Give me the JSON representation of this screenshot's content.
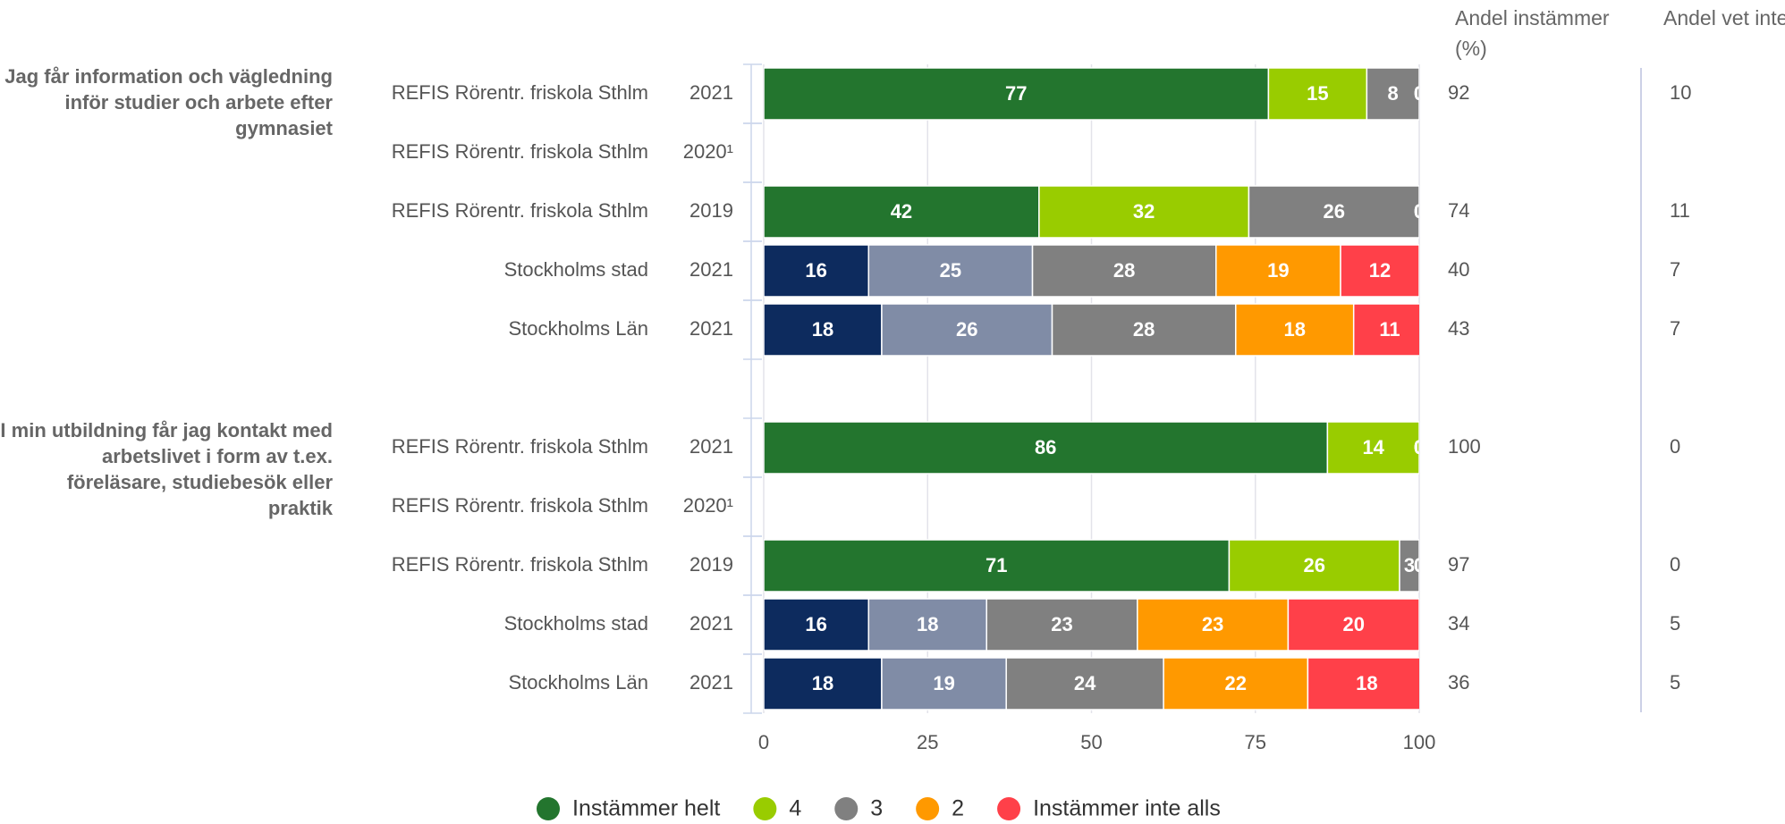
{
  "chart_data": {
    "type": "bar",
    "orientation": "horizontal",
    "stacked": true,
    "column_headers": [
      "Andel instämmer (%)",
      "Andel vet inte (%)"
    ],
    "legend": [
      {
        "name": "Instämmer helt",
        "color": "#23752e"
      },
      {
        "name": "4",
        "color": "#99cc00"
      },
      {
        "name": "3",
        "color": "#808080"
      },
      {
        "name": "2",
        "color": "#ff9900"
      },
      {
        "name": "Instämmer inte alls",
        "color": "#ff4049"
      }
    ],
    "xlim": [
      0,
      100
    ],
    "xticks": [
      0,
      25,
      50,
      75,
      100
    ],
    "grid": true,
    "groups": [
      {
        "label": "Jag får information och vägledning inför studier och arbete efter gymnasiet",
        "rows": [
          {
            "name": "REFIS Rörentr. friskola Sthlm",
            "year": "2021",
            "values": [
              77,
              15,
              8,
              0,
              0
            ],
            "colors": [
              "#23752e",
              "#99cc00",
              "#808080",
              "#ff9900",
              "#ff4049"
            ],
            "agree": 92,
            "dont_know": 10
          },
          {
            "name": "REFIS Rörentr. friskola Sthlm",
            "year": "2020¹",
            "values": [
              null,
              null,
              null,
              null,
              null
            ],
            "agree": null,
            "dont_know": null
          },
          {
            "name": "REFIS Rörentr. friskola Sthlm",
            "year": "2019",
            "values": [
              42,
              32,
              26,
              0,
              0
            ],
            "colors": [
              "#23752e",
              "#99cc00",
              "#808080",
              "#ff9900",
              "#ff4049"
            ],
            "agree": 74,
            "dont_know": 11
          },
          {
            "name": "Stockholms stad",
            "year": "2021",
            "values": [
              16,
              25,
              28,
              19,
              12
            ],
            "colors": [
              "#0d2b5e",
              "#808ca6",
              "#808080",
              "#ff9900",
              "#ff4049"
            ],
            "agree": 40,
            "dont_know": 7
          },
          {
            "name": "Stockholms Län",
            "year": "2021",
            "values": [
              18,
              26,
              28,
              18,
              11
            ],
            "colors": [
              "#0d2b5e",
              "#808ca6",
              "#808080",
              "#ff9900",
              "#ff4049"
            ],
            "agree": 43,
            "dont_know": 7
          }
        ]
      },
      {
        "label": "I min utbildning får jag kontakt med arbetslivet i form av t.ex. föreläsare, studiebesök eller praktik",
        "rows": [
          {
            "name": "REFIS Rörentr. friskola Sthlm",
            "year": "2021",
            "values": [
              86,
              14,
              0,
              0,
              0
            ],
            "colors": [
              "#23752e",
              "#99cc00",
              "#808080",
              "#ff9900",
              "#ff4049"
            ],
            "agree": 100,
            "dont_know": 0
          },
          {
            "name": "REFIS Rörentr. friskola Sthlm",
            "year": "2020¹",
            "values": [
              null,
              null,
              null,
              null,
              null
            ],
            "agree": null,
            "dont_know": null
          },
          {
            "name": "REFIS Rörentr. friskola Sthlm",
            "year": "2019",
            "values": [
              71,
              26,
              3,
              0,
              0
            ],
            "colors": [
              "#23752e",
              "#99cc00",
              "#808080",
              "#ff9900",
              "#ff4049"
            ],
            "agree": 97,
            "dont_know": 0
          },
          {
            "name": "Stockholms stad",
            "year": "2021",
            "values": [
              16,
              18,
              23,
              23,
              20
            ],
            "colors": [
              "#0d2b5e",
              "#808ca6",
              "#808080",
              "#ff9900",
              "#ff4049"
            ],
            "agree": 34,
            "dont_know": 5
          },
          {
            "name": "Stockholms Län",
            "year": "2021",
            "values": [
              18,
              19,
              24,
              22,
              18
            ],
            "colors": [
              "#0d2b5e",
              "#808ca6",
              "#808080",
              "#ff9900",
              "#ff4049"
            ],
            "agree": 36,
            "dont_know": 5
          }
        ]
      }
    ]
  }
}
